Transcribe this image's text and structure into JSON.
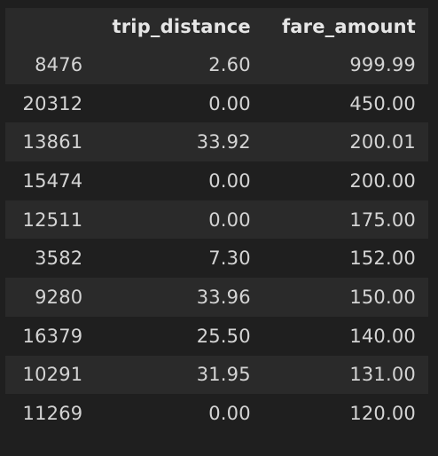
{
  "table": {
    "columns": [
      "",
      "trip_distance",
      "fare_amount"
    ],
    "rows": [
      {
        "index": "8476",
        "trip_distance": "2.60",
        "fare_amount": "999.99"
      },
      {
        "index": "20312",
        "trip_distance": "0.00",
        "fare_amount": "450.00"
      },
      {
        "index": "13861",
        "trip_distance": "33.92",
        "fare_amount": "200.01"
      },
      {
        "index": "15474",
        "trip_distance": "0.00",
        "fare_amount": "200.00"
      },
      {
        "index": "12511",
        "trip_distance": "0.00",
        "fare_amount": "175.00"
      },
      {
        "index": "3582",
        "trip_distance": "7.30",
        "fare_amount": "152.00"
      },
      {
        "index": "9280",
        "trip_distance": "33.96",
        "fare_amount": "150.00"
      },
      {
        "index": "16379",
        "trip_distance": "25.50",
        "fare_amount": "140.00"
      },
      {
        "index": "10291",
        "trip_distance": "31.95",
        "fare_amount": "131.00"
      },
      {
        "index": "11269",
        "trip_distance": "0.00",
        "fare_amount": "120.00"
      }
    ]
  },
  "colors": {
    "background": "#1f1f1f",
    "stripe": "#2a2a2a",
    "text": "#d4d4d4"
  }
}
